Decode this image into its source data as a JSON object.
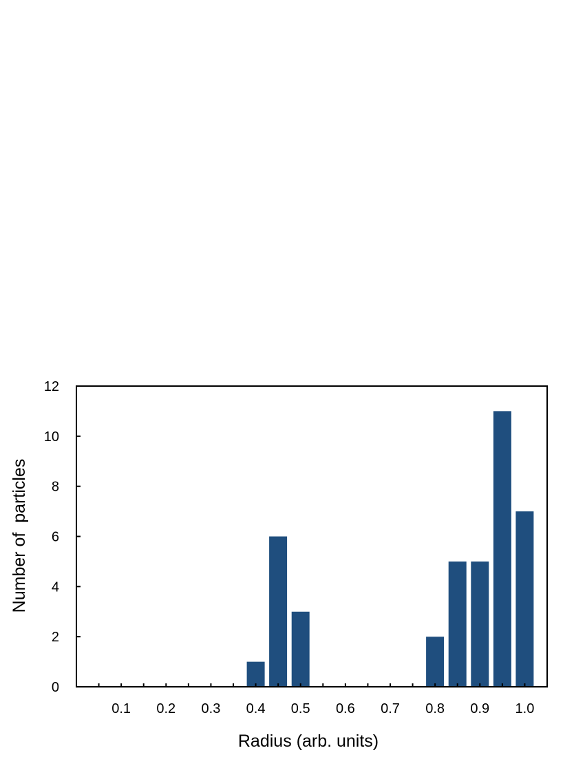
{
  "chart_data": {
    "type": "bar",
    "title": "",
    "xlabel": "Radius (arb. units)",
    "ylabel": "Number of  particles",
    "x_tick_labels": [
      "0.1",
      "0.2",
      "0.3",
      "0.4",
      "0.5",
      "0.6",
      "0.7",
      "0.8",
      "0.9",
      "1.0"
    ],
    "y_tick_labels": [
      "0",
      "2",
      "4",
      "6",
      "8",
      "10",
      "12"
    ],
    "xlim": [
      0.0,
      1.05
    ],
    "ylim": [
      0,
      12
    ],
    "grid": false,
    "legend": "none",
    "bar_color": "#1f4e7e",
    "bars": [
      {
        "x": 0.4,
        "value": 1
      },
      {
        "x": 0.45,
        "value": 6
      },
      {
        "x": 0.5,
        "value": 3
      },
      {
        "x": 0.8,
        "value": 2
      },
      {
        "x": 0.85,
        "value": 5
      },
      {
        "x": 0.9,
        "value": 5
      },
      {
        "x": 0.95,
        "value": 11
      },
      {
        "x": 1.0,
        "value": 7
      }
    ]
  }
}
